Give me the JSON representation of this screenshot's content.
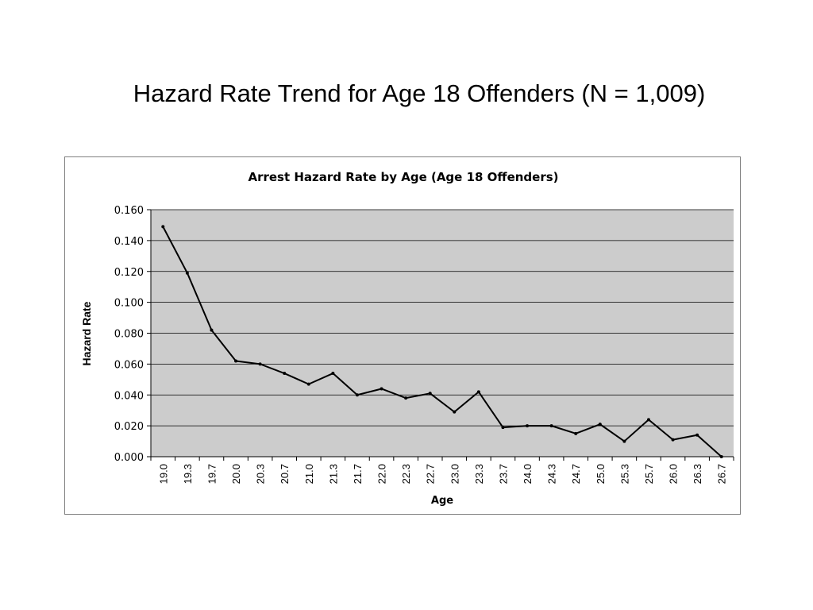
{
  "slide": {
    "title": "Hazard Rate Trend for Age 18 Offenders (N = 1,009)"
  },
  "chart_data": {
    "type": "line",
    "title": "Arrest Hazard Rate by Age (Age 18 Offenders)",
    "xlabel": "Age",
    "ylabel": "Hazard Rate",
    "ylim": [
      0,
      0.16
    ],
    "y_ticks": [
      "0.000",
      "0.020",
      "0.040",
      "0.060",
      "0.080",
      "0.100",
      "0.120",
      "0.140",
      "0.160"
    ],
    "categories": [
      "19.0",
      "19.3",
      "19.7",
      "20.0",
      "20.3",
      "20.7",
      "21.0",
      "21.3",
      "21.7",
      "22.0",
      "22.3",
      "22.7",
      "23.0",
      "23.3",
      "23.7",
      "24.0",
      "24.3",
      "24.7",
      "25.0",
      "25.3",
      "25.7",
      "26.0",
      "26.3",
      "26.7"
    ],
    "series": [
      {
        "values": [
          0.149,
          0.119,
          0.082,
          0.062,
          0.06,
          0.054,
          0.047,
          0.054,
          0.04,
          0.044,
          0.038,
          0.041,
          0.029,
          0.042,
          0.019,
          0.02,
          0.02,
          0.015,
          0.021,
          0.01,
          0.024,
          0.011,
          0.014,
          0.0
        ]
      }
    ],
    "grid": true,
    "legend": "none",
    "colors": {
      "plot_background": "#cccccc",
      "line": "#000000",
      "grid": "#000000"
    }
  }
}
